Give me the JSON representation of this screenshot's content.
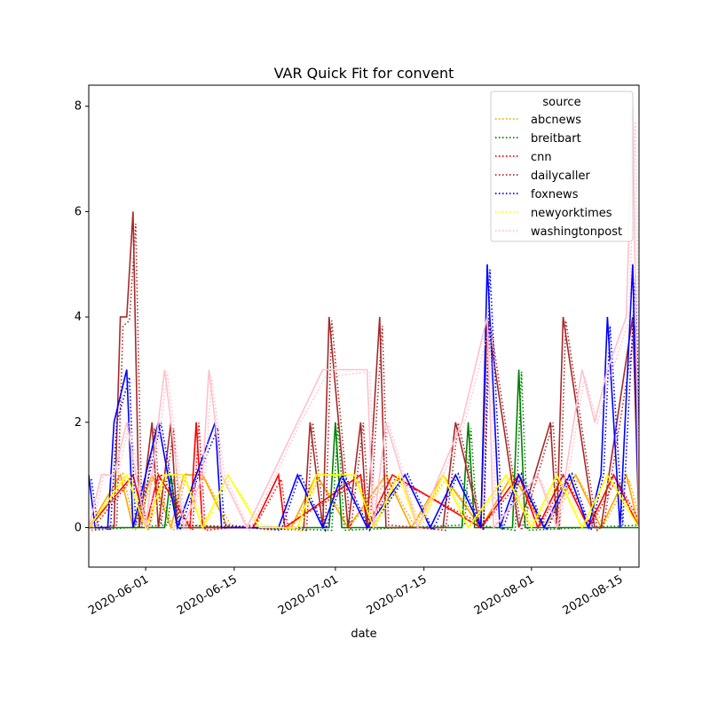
{
  "chart_data": {
    "type": "line",
    "title": "VAR Quick Fit for convent",
    "xlabel": "date",
    "ylabel": "",
    "x_range": [
      "2020-05-23",
      "2020-08-18"
    ],
    "ylim": [
      -0.75,
      8.4
    ],
    "yticks": [
      0,
      2,
      4,
      6,
      8
    ],
    "xticks": [
      "2020-06-01",
      "2020-06-15",
      "2020-07-01",
      "2020-07-15",
      "2020-08-01",
      "2020-08-15"
    ],
    "grid": false,
    "legend": {
      "title": "source",
      "placement": "top-right"
    },
    "colors": {
      "abcnews": "#ffa500",
      "breitbart": "#008000",
      "cnn": "#ff0000",
      "dailycaller": "#a52a2a",
      "foxnews": "#0000ff",
      "newyorktimes": "#ffff00",
      "washingtonpost": "#ffc0cb"
    },
    "series": [
      {
        "name": "abcnews",
        "x": [
          "2020-05-23",
          "2020-05-28",
          "2020-05-30",
          "2020-06-02",
          "2020-06-05",
          "2020-06-07",
          "2020-06-10",
          "2020-06-14",
          "2020-06-20",
          "2020-06-24",
          "2020-06-28",
          "2020-07-03",
          "2020-07-09",
          "2020-07-13",
          "2020-07-18",
          "2020-07-24",
          "2020-07-29",
          "2020-08-03",
          "2020-08-08",
          "2020-08-12",
          "2020-08-16",
          "2020-08-18"
        ],
        "values": [
          0,
          1,
          0,
          1,
          0,
          1,
          1,
          0,
          0,
          0,
          1,
          0,
          1,
          0,
          1,
          0,
          1,
          0,
          1,
          0,
          1,
          0
        ]
      },
      {
        "name": "breitbart",
        "x": [
          "2020-05-23",
          "2020-06-04",
          "2020-06-05",
          "2020-06-06",
          "2020-06-30",
          "2020-07-01",
          "2020-07-02",
          "2020-07-21",
          "2020-07-22",
          "2020-07-23",
          "2020-07-29",
          "2020-07-30",
          "2020-07-31",
          "2020-08-18"
        ],
        "values": [
          0,
          0,
          1,
          0,
          0,
          2,
          0,
          0,
          2,
          0,
          0,
          3,
          0,
          0
        ]
      },
      {
        "name": "cnn",
        "x": [
          "2020-05-23",
          "2020-05-30",
          "2020-06-01",
          "2020-06-03",
          "2020-06-08",
          "2020-06-09",
          "2020-06-10",
          "2020-06-18",
          "2020-06-22",
          "2020-06-23",
          "2020-07-05",
          "2020-07-06",
          "2020-07-10",
          "2020-07-24",
          "2020-07-30",
          "2020-08-02",
          "2020-08-06",
          "2020-08-10",
          "2020-08-14",
          "2020-08-18"
        ],
        "values": [
          0,
          1,
          0,
          1,
          0,
          2,
          0,
          0,
          1,
          0,
          1,
          0,
          1,
          0,
          1,
          0,
          1,
          0,
          1,
          0
        ]
      },
      {
        "name": "dailycaller",
        "x": [
          "2020-05-23",
          "2020-05-27",
          "2020-05-28",
          "2020-05-29",
          "2020-05-30",
          "2020-05-31",
          "2020-06-02",
          "2020-06-03",
          "2020-06-05",
          "2020-06-06",
          "2020-06-26",
          "2020-06-27",
          "2020-06-29",
          "2020-06-30",
          "2020-07-03",
          "2020-07-05",
          "2020-07-06",
          "2020-07-07",
          "2020-07-08",
          "2020-07-09",
          "2020-07-18",
          "2020-07-20",
          "2020-07-24",
          "2020-07-25",
          "2020-07-30",
          "2020-08-04",
          "2020-08-05",
          "2020-08-06",
          "2020-08-11",
          "2020-08-12",
          "2020-08-17",
          "2020-08-18"
        ],
        "values": [
          0,
          0,
          4,
          4,
          6,
          0,
          2,
          0,
          2,
          0,
          0,
          2,
          0,
          4,
          0,
          2,
          0,
          2,
          4,
          0,
          0,
          2,
          0,
          4,
          0,
          2,
          0,
          4,
          0,
          0,
          4,
          0
        ]
      },
      {
        "name": "foxnews",
        "x": [
          "2020-05-23",
          "2020-05-24",
          "2020-05-26",
          "2020-05-27",
          "2020-05-29",
          "2020-05-30",
          "2020-06-01",
          "2020-06-03",
          "2020-06-06",
          "2020-06-09",
          "2020-06-12",
          "2020-06-13",
          "2020-06-22",
          "2020-06-25",
          "2020-06-29",
          "2020-07-02",
          "2020-07-06",
          "2020-07-12",
          "2020-07-16",
          "2020-07-20",
          "2020-07-24",
          "2020-07-25",
          "2020-07-27",
          "2020-07-30",
          "2020-08-03",
          "2020-08-07",
          "2020-08-10",
          "2020-08-12",
          "2020-08-13",
          "2020-08-15",
          "2020-08-17",
          "2020-08-18"
        ],
        "values": [
          1,
          0,
          0,
          2,
          3,
          0,
          1,
          2,
          0,
          1,
          2,
          0,
          0,
          1,
          0,
          1,
          0,
          1,
          0,
          1,
          0,
          5,
          0,
          1,
          0,
          1,
          0,
          1,
          4,
          0,
          5,
          0
        ]
      },
      {
        "name": "newyorktimes",
        "x": [
          "2020-05-23",
          "2020-05-29",
          "2020-06-01",
          "2020-06-04",
          "2020-06-07",
          "2020-06-10",
          "2020-06-14",
          "2020-06-19",
          "2020-06-25",
          "2020-06-28",
          "2020-07-04",
          "2020-07-07",
          "2020-07-11",
          "2020-07-14",
          "2020-07-18",
          "2020-07-22",
          "2020-07-28",
          "2020-08-01",
          "2020-08-05",
          "2020-08-09",
          "2020-08-13",
          "2020-08-18"
        ],
        "values": [
          0,
          1,
          0,
          1,
          1,
          0,
          1,
          0,
          0,
          1,
          1,
          0,
          1,
          0,
          1,
          0,
          1,
          0,
          1,
          0,
          1,
          0
        ]
      },
      {
        "name": "washingtonpost",
        "x": [
          "2020-05-23",
          "2020-05-25",
          "2020-05-27",
          "2020-05-29",
          "2020-06-01",
          "2020-06-04",
          "2020-06-07",
          "2020-06-10",
          "2020-06-11",
          "2020-06-13",
          "2020-06-17",
          "2020-06-25",
          "2020-06-29",
          "2020-07-06",
          "2020-07-07",
          "2020-07-09",
          "2020-07-14",
          "2020-07-21",
          "2020-07-25",
          "2020-07-26",
          "2020-08-02",
          "2020-08-05",
          "2020-08-09",
          "2020-08-11",
          "2020-08-13",
          "2020-08-16",
          "2020-08-17",
          "2020-08-18"
        ],
        "values": [
          0,
          1,
          1,
          2,
          0,
          3,
          0,
          1,
          3,
          1,
          0,
          2,
          3,
          3,
          0,
          2,
          0,
          2,
          4,
          0,
          1,
          0,
          3,
          2,
          3,
          4,
          8,
          0
        ]
      }
    ]
  }
}
